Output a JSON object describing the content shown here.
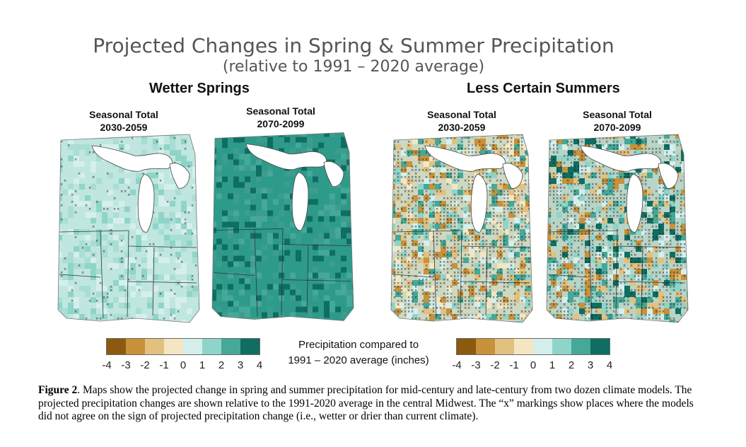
{
  "header": {
    "title": "Projected Changes in Spring & Summer Precipitation",
    "subtitle": "(relative to 1991 – 2020 average)"
  },
  "groups": [
    {
      "heading": "Wetter Springs",
      "maps": [
        {
          "label_line1": "Seasonal Total",
          "label_line2": "2030-2059"
        },
        {
          "label_line1": "Seasonal Total",
          "label_line2": "2070-2099"
        }
      ]
    },
    {
      "heading": "Less Certain Summers",
      "maps": [
        {
          "label_line1": "Seasonal Total",
          "label_line2": "2030-2059"
        },
        {
          "label_line1": "Seasonal Total",
          "label_line2": "2070-2099"
        }
      ]
    }
  ],
  "legend": {
    "title_line1": "Precipitation compared to",
    "title_line2": "1991 – 2020 average (inches)",
    "ticks": [
      "-4",
      "-3",
      "-2",
      "-1",
      "0",
      "1",
      "2",
      "3",
      "4"
    ],
    "colors": [
      "#8c5a0f",
      "#c8913a",
      "#e2c17f",
      "#f4e6c2",
      "#d5efec",
      "#8fd4c8",
      "#45a898",
      "#0e6e62"
    ]
  },
  "caption": {
    "label": "Figure 2",
    "text": ". Maps show the projected change in spring and summer precipitation for mid-century and late-century  from two dozen climate models. The projected precipitation changes are shown relative to the 1991-2020 average in the central Midwest. The “x” markings show places where the models did not agree on the sign of projected precipitation change (i.e., wetter or drier than current climate)."
  },
  "map_colors": {
    "lake": "#ffffff",
    "border": "#333333",
    "spring_mid": "#bfe6df",
    "spring_late": "#2e9a8a",
    "summer_mid": "#cfd8c0",
    "summer_late": "#b9d5c8"
  }
}
